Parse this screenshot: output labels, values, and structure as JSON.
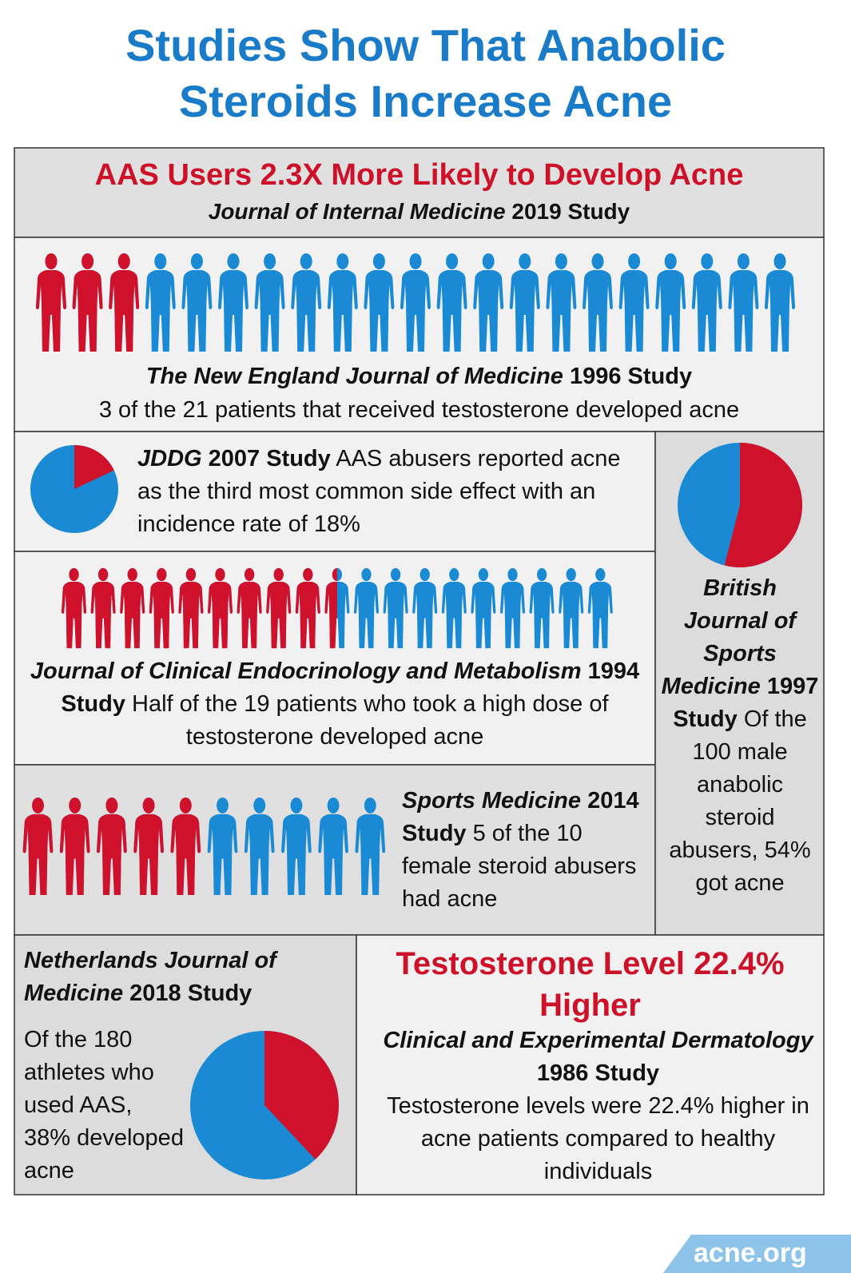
{
  "title": "Studies Show That Anabolic Steroids Increase Acne",
  "colors": {
    "highlight": "#d0112b",
    "base": "#1a8ad4"
  },
  "banner": {
    "headline": "AAS Users 2.3X More Likely to Develop Acne",
    "journal": "Journal of Internal Medicine",
    "study": "2019 Study"
  },
  "nejm": {
    "figures_total": 21,
    "figures_highlighted": 3,
    "journal": "The New England Journal of Medicine",
    "study": "1996 Study",
    "text": "3 of the 21 patients that received testosterone developed acne"
  },
  "jddg": {
    "pie_percent": 18,
    "journal": "JDDG",
    "study": "2007 Study",
    "text": "AAS abusers reported acne as the third most common side effect with an incidence rate of 18%"
  },
  "jcem": {
    "figures_total": 19,
    "figures_highlighted": 9.5,
    "journal": "Journal of Clinical Endocrinology and Metabolism",
    "study": "1994 Study",
    "text": "Half of the 19 patients who took a high dose of testosterone developed acne"
  },
  "sports": {
    "figures_total": 10,
    "figures_highlighted": 5,
    "journal": "Sports Medicine",
    "study": "2014 Study",
    "text": "5 of the 10 female steroid abusers had acne"
  },
  "bjsm": {
    "pie_percent": 54,
    "journal": "British Journal of Sports Medicine",
    "study": "1997 Study",
    "text": "Of the 100 male anabolic steroid abusers, 54% got acne"
  },
  "netherlands": {
    "pie_percent": 38,
    "journal": "Netherlands Journal of Medicine",
    "study": "2018 Study",
    "text": "Of the 180 athletes who used AAS, 38% developed acne"
  },
  "testosterone": {
    "headline": "Testosterone Level 22.4% Higher",
    "journal": "Clinical and Experimental Dermatology",
    "study": "1986 Study",
    "text": "Testosterone levels were 22.4% higher in acne patients compared to healthy individuals"
  },
  "logo": "acne.org"
}
